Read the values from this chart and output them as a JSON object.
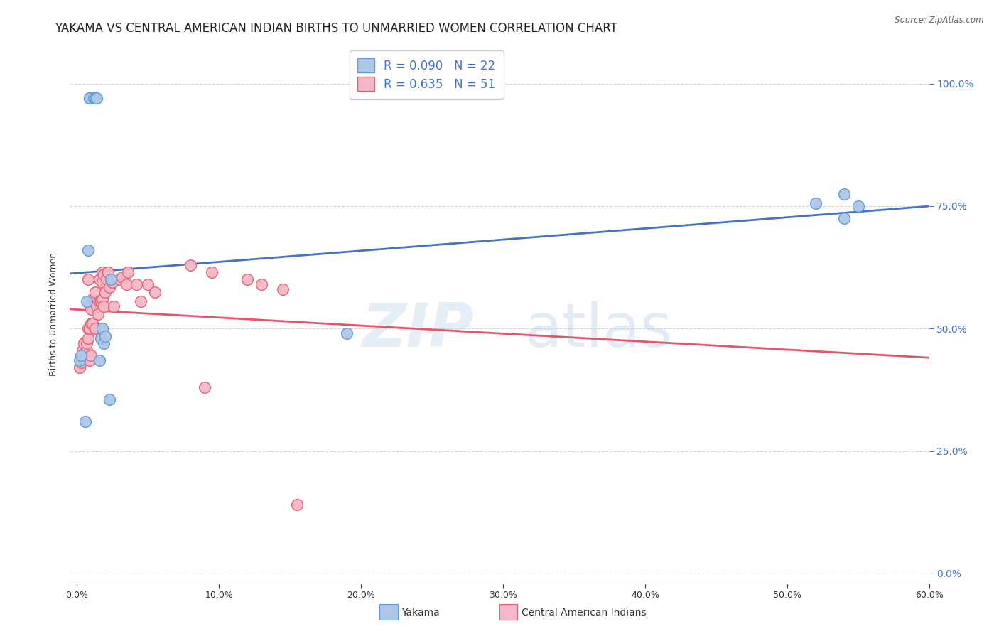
{
  "title": "YAKAMA VS CENTRAL AMERICAN INDIAN BIRTHS TO UNMARRIED WOMEN CORRELATION CHART",
  "source": "Source: ZipAtlas.com",
  "ylabel": "Births to Unmarried Women",
  "xlabel_ticks": [
    "0.0%",
    "10.0%",
    "20.0%",
    "30.0%",
    "40.0%",
    "50.0%",
    "60.0%"
  ],
  "xlabel_vals": [
    0.0,
    0.1,
    0.2,
    0.3,
    0.4,
    0.5,
    0.6
  ],
  "ylabel_ticks": [
    "0.0%",
    "25.0%",
    "50.0%",
    "75.0%",
    "100.0%"
  ],
  "ylabel_vals": [
    0.0,
    0.25,
    0.5,
    0.75,
    1.0
  ],
  "xlim": [
    -0.005,
    0.6
  ],
  "ylim": [
    -0.02,
    1.08
  ],
  "R_yakama": 0.09,
  "N_yakama": 22,
  "R_central": 0.635,
  "N_central": 51,
  "legend_labels": [
    "Yakama",
    "Central American Indians"
  ],
  "yakama_color": "#aec6e8",
  "central_color": "#f5b8c8",
  "yakama_edge": "#5b9bd5",
  "central_edge": "#e06070",
  "line_yakama_color": "#4472c4",
  "line_central_color": "#e8546a",
  "background_color": "#ffffff",
  "grid_color": "#d0d0d0",
  "title_fontsize": 12,
  "axis_label_fontsize": 9,
  "tick_fontsize": 9,
  "watermark_zip": "ZIP",
  "watermark_atlas": "atlas",
  "yakama_x": [
    0.002,
    0.003,
    0.006,
    0.007,
    0.008,
    0.009,
    0.009,
    0.012,
    0.013,
    0.014,
    0.016,
    0.017,
    0.018,
    0.019,
    0.02,
    0.023,
    0.024,
    0.19,
    0.52,
    0.54,
    0.54,
    0.55
  ],
  "yakama_y": [
    0.435,
    0.445,
    0.31,
    0.555,
    0.66,
    0.97,
    0.97,
    0.97,
    0.97,
    0.97,
    0.435,
    0.48,
    0.5,
    0.47,
    0.485,
    0.355,
    0.6,
    0.49,
    0.755,
    0.775,
    0.725,
    0.75
  ],
  "central_x": [
    0.002,
    0.003,
    0.004,
    0.004,
    0.005,
    0.006,
    0.007,
    0.007,
    0.008,
    0.008,
    0.008,
    0.009,
    0.009,
    0.01,
    0.01,
    0.01,
    0.011,
    0.011,
    0.013,
    0.013,
    0.014,
    0.015,
    0.016,
    0.016,
    0.017,
    0.018,
    0.018,
    0.018,
    0.019,
    0.019,
    0.02,
    0.021,
    0.022,
    0.023,
    0.025,
    0.026,
    0.03,
    0.032,
    0.035,
    0.036,
    0.042,
    0.045,
    0.05,
    0.055,
    0.08,
    0.09,
    0.095,
    0.12,
    0.13,
    0.145,
    0.155
  ],
  "central_y": [
    0.42,
    0.43,
    0.44,
    0.455,
    0.47,
    0.44,
    0.455,
    0.47,
    0.48,
    0.5,
    0.6,
    0.435,
    0.5,
    0.445,
    0.51,
    0.54,
    0.51,
    0.56,
    0.5,
    0.575,
    0.545,
    0.53,
    0.555,
    0.6,
    0.555,
    0.56,
    0.595,
    0.615,
    0.545,
    0.61,
    0.575,
    0.6,
    0.615,
    0.585,
    0.595,
    0.545,
    0.6,
    0.605,
    0.59,
    0.615,
    0.59,
    0.555,
    0.59,
    0.575,
    0.63,
    0.38,
    0.615,
    0.6,
    0.59,
    0.58,
    0.14
  ]
}
